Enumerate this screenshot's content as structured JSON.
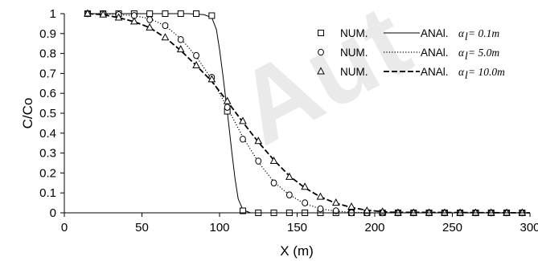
{
  "watermark": "Aut",
  "chart_data": {
    "type": "line",
    "title": "",
    "xlabel": "X (m)",
    "ylabel": "C/Co",
    "xlim": [
      0,
      300
    ],
    "ylim": [
      0,
      1
    ],
    "x_ticks": [
      "0",
      "50",
      "100",
      "150",
      "200",
      "250",
      "300"
    ],
    "y_ticks": [
      "0",
      "0.1",
      "0.2",
      "0.3",
      "0.4",
      "0.5",
      "0.6",
      "0.7",
      "0.8",
      "0.9",
      "1"
    ],
    "grid": false,
    "legend_position": "right",
    "colors": {
      "ink": "#000000",
      "watermark": "#d9d9d9"
    },
    "legend": [
      {
        "num_label": "NUM.",
        "anal_label": "ANAl.",
        "alpha_label": "α",
        "alpha_sub": "l",
        "alpha_value": " = 0.1m",
        "marker": "square",
        "dash": "solid"
      },
      {
        "num_label": "NUM.",
        "anal_label": "ANAl.",
        "alpha_label": "α",
        "alpha_sub": "l",
        "alpha_value": " = 5.0m",
        "marker": "circle",
        "dash": "dotted"
      },
      {
        "num_label": "NUM.",
        "anal_label": "ANAl.",
        "alpha_label": "α",
        "alpha_sub": "l",
        "alpha_value": " = 10.0m",
        "marker": "triangle",
        "dash": "dashed"
      }
    ],
    "series": [
      {
        "name": "NUM. α_l = 0.1m",
        "kind": "markers",
        "marker": "square",
        "x": [
          15,
          25,
          35,
          45,
          55,
          65,
          75,
          85,
          95,
          105,
          115,
          125,
          135,
          145,
          155,
          165,
          175,
          185,
          195,
          205,
          215,
          225,
          235,
          245,
          255,
          265,
          275,
          285,
          295
        ],
        "y": [
          1,
          1,
          1,
          1,
          1,
          1,
          1,
          1,
          0.99,
          0.51,
          0.01,
          0,
          0,
          0,
          0,
          0,
          0,
          0,
          0,
          0,
          0,
          0,
          0,
          0,
          0,
          0,
          0,
          0,
          0
        ]
      },
      {
        "name": "NUM. α_l = 5.0m",
        "kind": "markers",
        "marker": "circle",
        "x": [
          15,
          25,
          35,
          45,
          55,
          65,
          75,
          85,
          95,
          105,
          115,
          125,
          135,
          145,
          155,
          165,
          175,
          185,
          195,
          205,
          215,
          225,
          235,
          245,
          255,
          265,
          275,
          285,
          295
        ],
        "y": [
          1,
          1,
          0.995,
          0.99,
          0.97,
          0.94,
          0.87,
          0.79,
          0.68,
          0.53,
          0.37,
          0.26,
          0.15,
          0.09,
          0.05,
          0.02,
          0.01,
          0,
          0,
          0,
          0,
          0,
          0,
          0,
          0,
          0,
          0,
          0,
          0
        ]
      },
      {
        "name": "NUM. α_l = 10.0m",
        "kind": "markers",
        "marker": "triangle",
        "x": [
          15,
          25,
          35,
          45,
          55,
          65,
          75,
          85,
          95,
          105,
          115,
          125,
          135,
          145,
          155,
          165,
          175,
          185,
          195,
          205,
          215,
          225,
          235,
          245,
          255,
          265,
          275,
          285,
          295
        ],
        "y": [
          1,
          0.995,
          0.98,
          0.96,
          0.93,
          0.88,
          0.82,
          0.74,
          0.67,
          0.56,
          0.46,
          0.36,
          0.26,
          0.18,
          0.13,
          0.08,
          0.05,
          0.03,
          0.01,
          0.005,
          0,
          0,
          0,
          0,
          0,
          0,
          0,
          0,
          0
        ]
      },
      {
        "name": "ANAl. α_l = 0.1m",
        "kind": "line",
        "dash": "solid",
        "x": [
          15,
          80,
          90,
          95,
          98,
          100,
          102,
          105,
          108,
          110,
          112,
          115,
          120,
          300
        ],
        "y": [
          1,
          1,
          0.995,
          0.98,
          0.92,
          0.82,
          0.7,
          0.51,
          0.3,
          0.17,
          0.07,
          0.015,
          0,
          0
        ]
      },
      {
        "name": "ANAl. α_l = 5.0m",
        "kind": "line",
        "dash": "dotted",
        "x": [
          15,
          30,
          45,
          55,
          65,
          75,
          85,
          95,
          105,
          115,
          125,
          135,
          145,
          155,
          165,
          175,
          185,
          200,
          300
        ],
        "y": [
          1,
          0.998,
          0.99,
          0.975,
          0.94,
          0.875,
          0.785,
          0.67,
          0.53,
          0.38,
          0.255,
          0.155,
          0.09,
          0.045,
          0.02,
          0.008,
          0.003,
          0,
          0
        ]
      },
      {
        "name": "ANAl. α_l = 10.0m",
        "kind": "line",
        "dash": "dashed",
        "x": [
          15,
          25,
          35,
          45,
          55,
          65,
          75,
          85,
          95,
          105,
          115,
          125,
          135,
          145,
          155,
          165,
          175,
          185,
          195,
          210,
          300
        ],
        "y": [
          1,
          0.995,
          0.98,
          0.96,
          0.93,
          0.88,
          0.815,
          0.74,
          0.66,
          0.56,
          0.455,
          0.355,
          0.265,
          0.185,
          0.125,
          0.08,
          0.048,
          0.027,
          0.013,
          0.003,
          0
        ]
      }
    ]
  }
}
